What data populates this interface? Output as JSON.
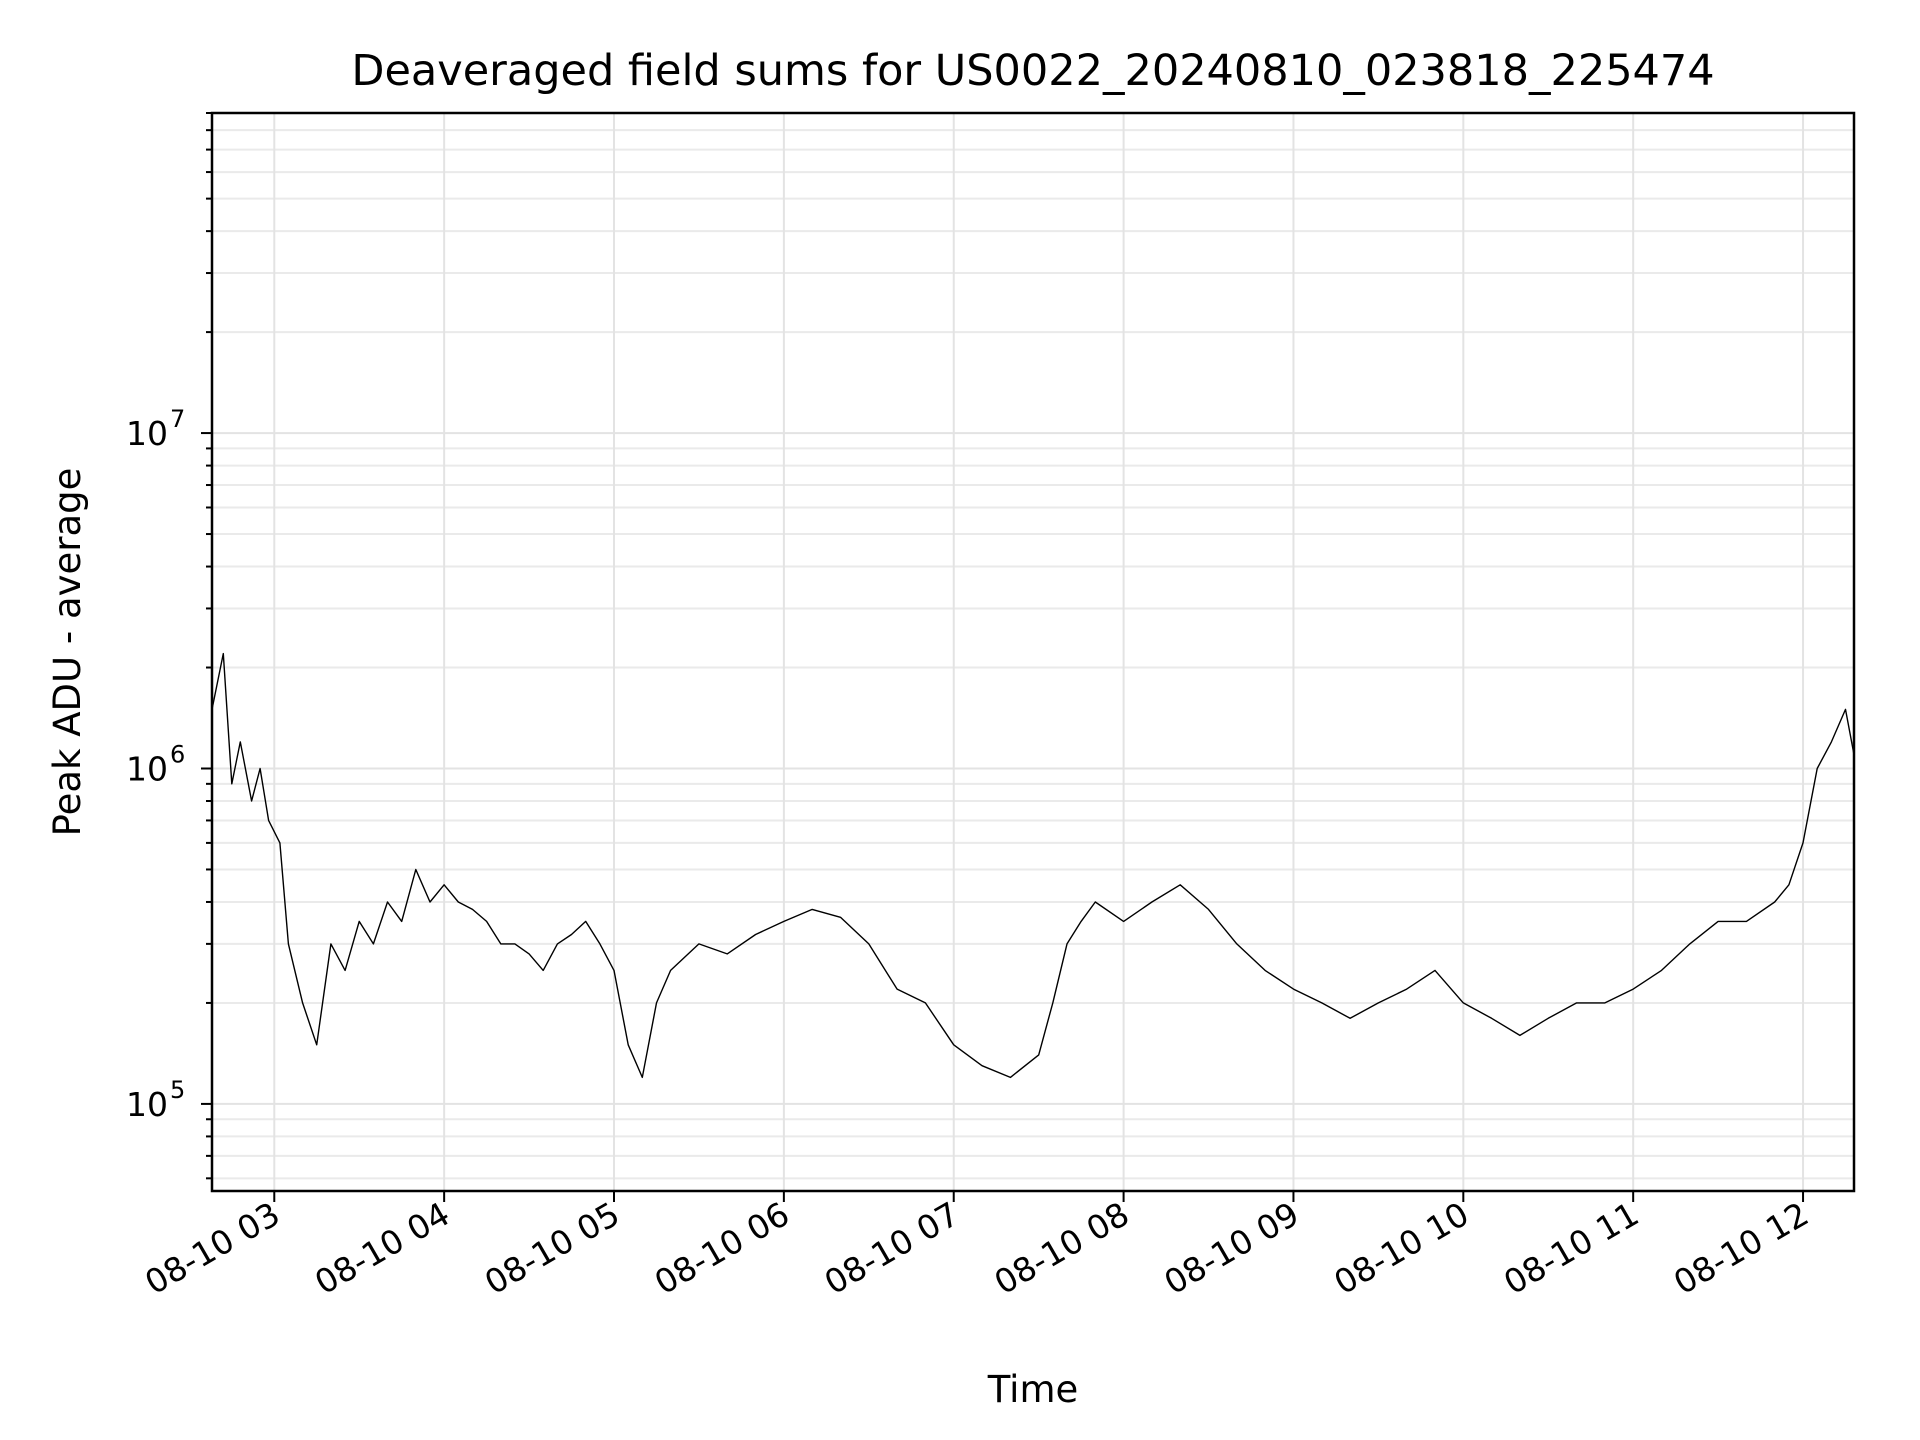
{
  "chart_data": {
    "type": "line",
    "title": "Deaveraged field sums for US0022_20240810_023818_225474",
    "xlabel": "Time",
    "ylabel": "Peak ADU - average",
    "yscale": "log",
    "ylim": [
      55000,
      90000000
    ],
    "xlim": [
      "2024-08-10 02:38",
      "2024-08-10 12:18"
    ],
    "grid": "on",
    "x_ticks": [
      "08-10 03",
      "08-10 04",
      "08-10 05",
      "08-10 06",
      "08-10 07",
      "08-10 08",
      "08-10 09",
      "08-10 10",
      "08-10 11",
      "08-10 12"
    ],
    "y_ticks": [
      {
        "base": "10",
        "exp": "5",
        "value": 100000
      },
      {
        "base": "10",
        "exp": "6",
        "value": 1000000
      },
      {
        "base": "10",
        "exp": "7",
        "value": 10000000
      }
    ],
    "series": [
      {
        "color": "#000000",
        "x": [
          "2024-08-10 02:38",
          "2024-08-10 02:42",
          "2024-08-10 02:45",
          "2024-08-10 02:48",
          "2024-08-10 02:52",
          "2024-08-10 02:55",
          "2024-08-10 02:58",
          "2024-08-10 03:02",
          "2024-08-10 03:05",
          "2024-08-10 03:10",
          "2024-08-10 03:15",
          "2024-08-10 03:20",
          "2024-08-10 03:25",
          "2024-08-10 03:30",
          "2024-08-10 03:35",
          "2024-08-10 03:40",
          "2024-08-10 03:45",
          "2024-08-10 03:50",
          "2024-08-10 03:55",
          "2024-08-10 04:00",
          "2024-08-10 04:05",
          "2024-08-10 04:10",
          "2024-08-10 04:15",
          "2024-08-10 04:20",
          "2024-08-10 04:25",
          "2024-08-10 04:30",
          "2024-08-10 04:35",
          "2024-08-10 04:40",
          "2024-08-10 04:45",
          "2024-08-10 04:50",
          "2024-08-10 04:55",
          "2024-08-10 05:00",
          "2024-08-10 05:05",
          "2024-08-10 05:10",
          "2024-08-10 05:15",
          "2024-08-10 05:20",
          "2024-08-10 05:30",
          "2024-08-10 05:40",
          "2024-08-10 05:50",
          "2024-08-10 06:00",
          "2024-08-10 06:10",
          "2024-08-10 06:20",
          "2024-08-10 06:30",
          "2024-08-10 06:40",
          "2024-08-10 06:50",
          "2024-08-10 07:00",
          "2024-08-10 07:10",
          "2024-08-10 07:20",
          "2024-08-10 07:30",
          "2024-08-10 07:35",
          "2024-08-10 07:40",
          "2024-08-10 07:45",
          "2024-08-10 07:50",
          "2024-08-10 08:00",
          "2024-08-10 08:10",
          "2024-08-10 08:20",
          "2024-08-10 08:30",
          "2024-08-10 08:40",
          "2024-08-10 08:50",
          "2024-08-10 09:00",
          "2024-08-10 09:10",
          "2024-08-10 09:20",
          "2024-08-10 09:30",
          "2024-08-10 09:40",
          "2024-08-10 09:50",
          "2024-08-10 10:00",
          "2024-08-10 10:10",
          "2024-08-10 10:20",
          "2024-08-10 10:30",
          "2024-08-10 10:40",
          "2024-08-10 10:50",
          "2024-08-10 11:00",
          "2024-08-10 11:10",
          "2024-08-10 11:20",
          "2024-08-10 11:30",
          "2024-08-10 11:40",
          "2024-08-10 11:50",
          "2024-08-10 11:55",
          "2024-08-10 12:00",
          "2024-08-10 12:05",
          "2024-08-10 12:10",
          "2024-08-10 12:15",
          "2024-08-10 12:18"
        ],
        "values": [
          1500000,
          2200000,
          900000,
          1200000,
          800000,
          1000000,
          700000,
          600000,
          300000,
          200000,
          150000,
          300000,
          250000,
          350000,
          300000,
          400000,
          350000,
          500000,
          400000,
          450000,
          400000,
          380000,
          350000,
          300000,
          300000,
          280000,
          250000,
          300000,
          320000,
          350000,
          300000,
          250000,
          150000,
          120000,
          200000,
          250000,
          300000,
          280000,
          320000,
          350000,
          380000,
          360000,
          300000,
          220000,
          200000,
          150000,
          130000,
          120000,
          140000,
          200000,
          300000,
          350000,
          400000,
          350000,
          400000,
          450000,
          380000,
          300000,
          250000,
          220000,
          200000,
          180000,
          200000,
          220000,
          250000,
          200000,
          180000,
          160000,
          180000,
          200000,
          200000,
          220000,
          250000,
          300000,
          350000,
          350000,
          400000,
          450000,
          600000,
          1000000,
          1200000,
          1500000,
          1100000
        ]
      }
    ]
  }
}
